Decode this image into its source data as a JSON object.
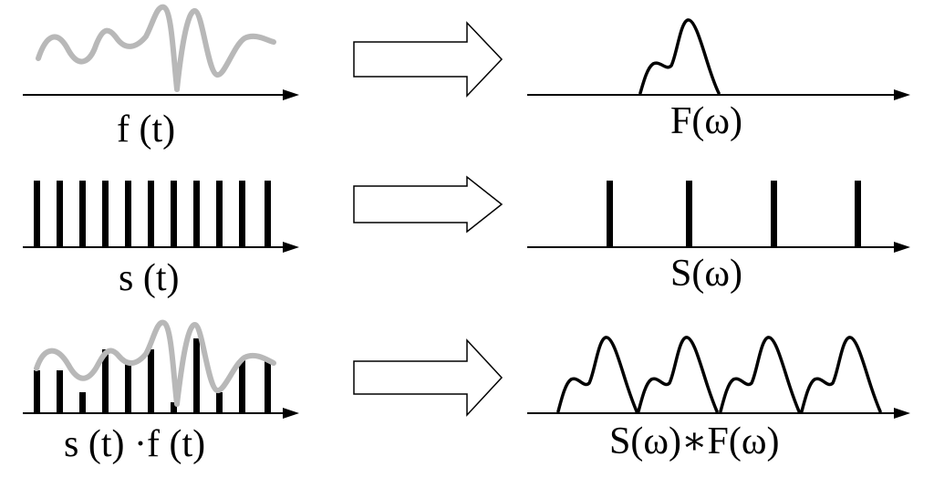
{
  "rows": [
    {
      "left_label": "f (t)",
      "right_label": "F(ω)"
    },
    {
      "left_label": "s (t)",
      "right_label": "S(ω)"
    },
    {
      "left_label": "s (t) ·f (t)",
      "right_label": "S(ω)∗F(ω)"
    }
  ],
  "colors": {
    "signal": "#b8b8b8",
    "ink": "#000000",
    "background": "#ffffff"
  }
}
